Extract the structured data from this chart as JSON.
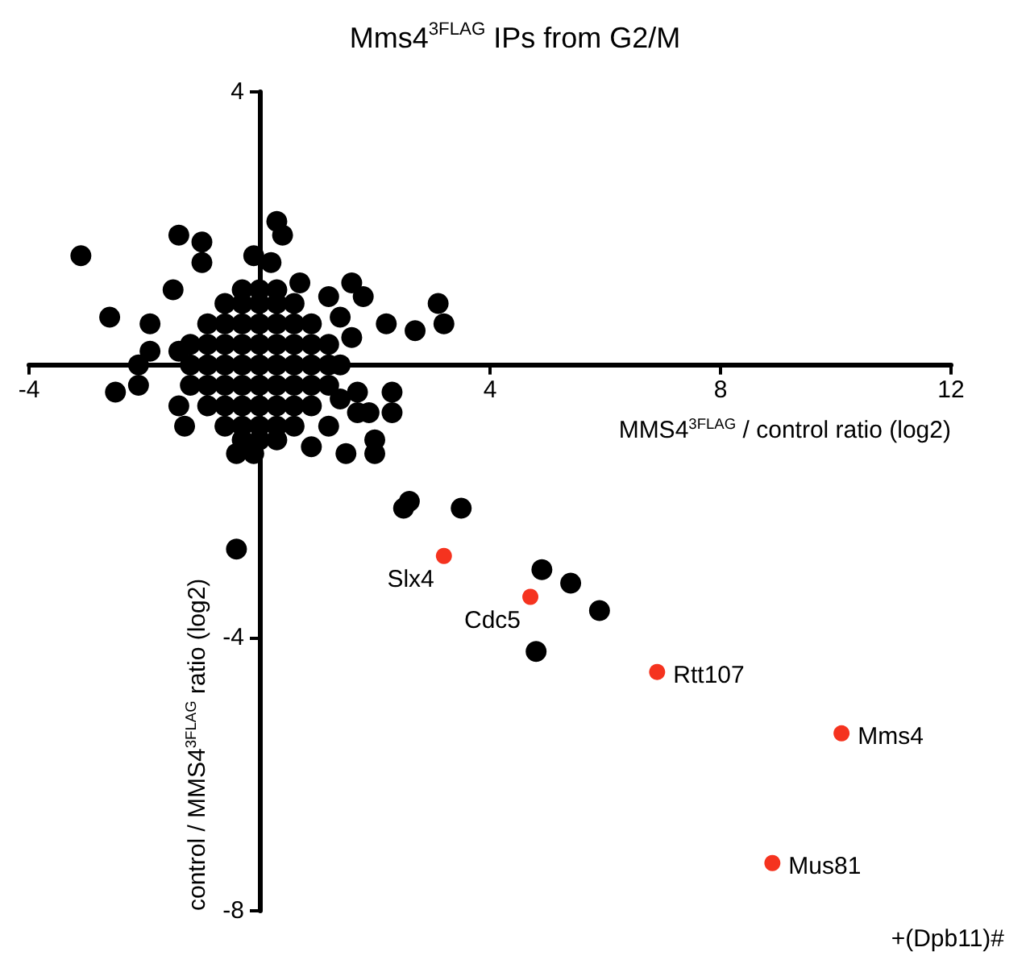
{
  "chart_data": {
    "type": "scatter",
    "title": "Mms4$^{3FLAG}$ IPs from G2/M",
    "xlabel": "MMS4$^{3FLAG}$ / control ratio (log2)",
    "ylabel": "control / MMS4$^{3FLAG}$ ratio (log2)",
    "xlim": [
      -4,
      12
    ],
    "ylim": [
      -8,
      4
    ],
    "xticks": [
      -4,
      4,
      8,
      12
    ],
    "yticks": [
      4,
      -4,
      -8
    ],
    "grid": false,
    "marker": "circle",
    "series": [
      {
        "color": "#000000",
        "x": [
          -0.3,
          0,
          0.3,
          -0.6,
          -0.3,
          0,
          0.3,
          0.6,
          -0.9,
          -0.6,
          -0.3,
          0,
          0.3,
          0.6,
          0.9,
          -1.2,
          -0.9,
          -0.6,
          -0.3,
          0,
          0.3,
          0.6,
          0.9,
          1.2,
          -1.2,
          -0.9,
          -0.6,
          -0.3,
          0,
          0.3,
          0.6,
          0.9,
          1.2,
          -1.2,
          -0.9,
          -0.6,
          -0.3,
          0,
          0.3,
          0.6,
          0.9,
          1.2,
          -0.9,
          -0.6,
          -0.3,
          0,
          0.3,
          0.6,
          0.9,
          -0.6,
          -0.3,
          0,
          0.3,
          0.6,
          -0.3,
          0,
          0.3,
          -3.1,
          -1.4,
          -1.0,
          -1.0,
          0.3,
          0.4,
          -2.6,
          -1.9,
          -1.5,
          -2.1,
          -1.9,
          -2.1,
          -2.5,
          1.6,
          1.8,
          1.2,
          2.2,
          2.7,
          3.1,
          3.2,
          1.7,
          2.3,
          1.7,
          1.9,
          2.3,
          1.4,
          1.2,
          2.0,
          2.0,
          1.5,
          0.9,
          -0.4,
          -1.3,
          -1.4,
          -1.4,
          -0.1,
          0.2,
          0.7,
          1.4,
          1.6,
          1.4,
          -0.1,
          2.6,
          2.5,
          3.5,
          4.9,
          5.4,
          5.9,
          4.8,
          -0.4
        ],
        "values": [
          1.1,
          1.1,
          1.1,
          0.9,
          0.9,
          0.9,
          0.9,
          0.9,
          0.6,
          0.6,
          0.6,
          0.6,
          0.6,
          0.6,
          0.6,
          0.3,
          0.3,
          0.3,
          0.3,
          0.3,
          0.3,
          0.3,
          0.3,
          0.3,
          0,
          0,
          0,
          0,
          0,
          0,
          0,
          0,
          0,
          -0.3,
          -0.3,
          -0.3,
          -0.3,
          -0.3,
          -0.3,
          -0.3,
          -0.3,
          -0.3,
          -0.6,
          -0.6,
          -0.6,
          -0.6,
          -0.6,
          -0.6,
          -0.6,
          -0.9,
          -0.9,
          -0.9,
          -0.9,
          -0.9,
          -1.1,
          -1.1,
          -1.1,
          1.6,
          1.9,
          1.8,
          1.5,
          2.1,
          1.9,
          0.7,
          0.6,
          1.1,
          0.0,
          0.2,
          -0.3,
          -0.4,
          1.2,
          1.0,
          1.0,
          0.6,
          0.5,
          0.9,
          0.6,
          -0.4,
          -0.4,
          -0.7,
          -0.7,
          -0.7,
          -0.5,
          -0.9,
          -1.1,
          -1.3,
          -1.3,
          -1.2,
          -1.3,
          -0.9,
          -0.6,
          0.2,
          1.6,
          1.5,
          1.2,
          0.7,
          0.4,
          0.0,
          -1.3,
          -2.0,
          -2.1,
          -2.1,
          -3.0,
          -3.2,
          -3.6,
          -4.2,
          -2.7
        ]
      },
      {
        "color": "#f5331f",
        "x": [
          3.2,
          4.7,
          6.9,
          10.1,
          8.9
        ],
        "values": [
          -2.8,
          -3.4,
          -4.5,
          -5.4,
          -7.3
        ]
      }
    ],
    "annotations": [
      {
        "text": "Slx4",
        "x": 3.2,
        "y": -2.8
      },
      {
        "text": "Cdc5",
        "x": 4.7,
        "y": -3.4
      },
      {
        "text": "Rtt107",
        "x": 6.9,
        "y": -4.5
      },
      {
        "text": "Mms4",
        "x": 10.1,
        "y": -5.4
      },
      {
        "text": "Mus81",
        "x": 8.9,
        "y": -7.3
      },
      "+(Dpb11)#"
    ]
  }
}
